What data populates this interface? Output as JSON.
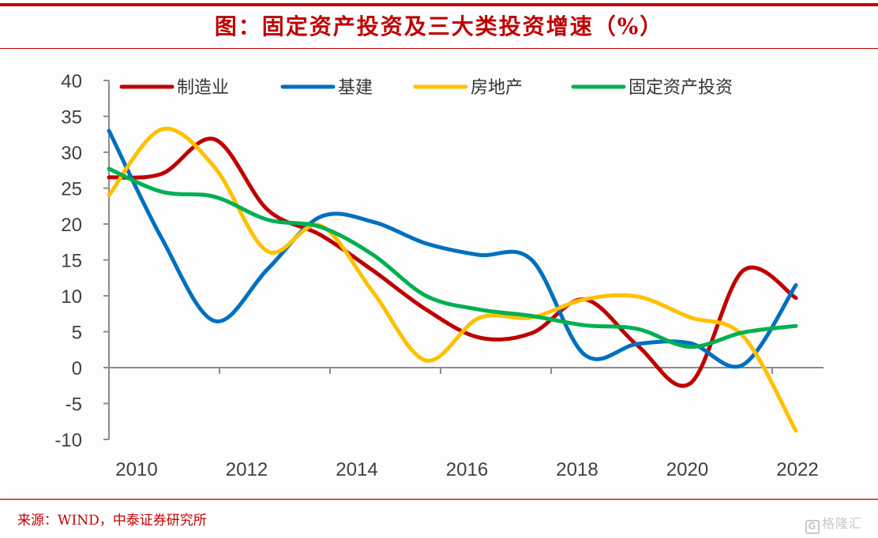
{
  "title": "图：固定资产投资及三大类投资增速（%）",
  "source": "来源：WIND，中泰证券研究所",
  "watermark": {
    "icon": "G",
    "text": "格隆汇"
  },
  "chart_data": {
    "type": "line",
    "title": "图：固定资产投资及三大类投资增速（%）",
    "xlabel": "",
    "ylabel": "",
    "x": [
      2009,
      2010,
      2011,
      2012,
      2013,
      2014,
      2015,
      2016,
      2017,
      2018,
      2019,
      2020,
      2021,
      2022
    ],
    "x_tick_labels": [
      "2010",
      "2012",
      "2014",
      "2016",
      "2018",
      "2020",
      "2022"
    ],
    "y_tick_labels": [
      "40",
      "35",
      "30",
      "25",
      "20",
      "15",
      "10",
      "5",
      "0",
      "-5",
      "-10"
    ],
    "ylim": [
      -10,
      40
    ],
    "y_step": 5,
    "grid": false,
    "smooth": true,
    "legend_position": "top",
    "series": [
      {
        "name": "制造业",
        "color": "#c00000",
        "values": [
          26.5,
          27.0,
          31.8,
          22.0,
          18.5,
          13.5,
          8.1,
          4.2,
          4.8,
          9.5,
          3.1,
          -2.2,
          13.5,
          9.7
        ]
      },
      {
        "name": "基建",
        "color": "#0070c0",
        "values": [
          33.0,
          18.0,
          6.5,
          13.7,
          21.0,
          20.3,
          17.3,
          15.7,
          15.0,
          1.8,
          3.3,
          3.4,
          0.4,
          11.5
        ]
      },
      {
        "name": "房地产",
        "color": "#ffc000",
        "values": [
          24.0,
          33.2,
          27.9,
          16.2,
          19.8,
          10.5,
          1.0,
          6.9,
          7.0,
          9.5,
          9.9,
          7.0,
          4.4,
          -8.8
        ]
      },
      {
        "name": "固定资产投资",
        "color": "#00b050",
        "values": [
          27.7,
          24.5,
          23.8,
          20.6,
          19.6,
          15.7,
          10.0,
          8.1,
          7.2,
          5.9,
          5.4,
          2.9,
          4.9,
          5.8
        ]
      }
    ]
  }
}
